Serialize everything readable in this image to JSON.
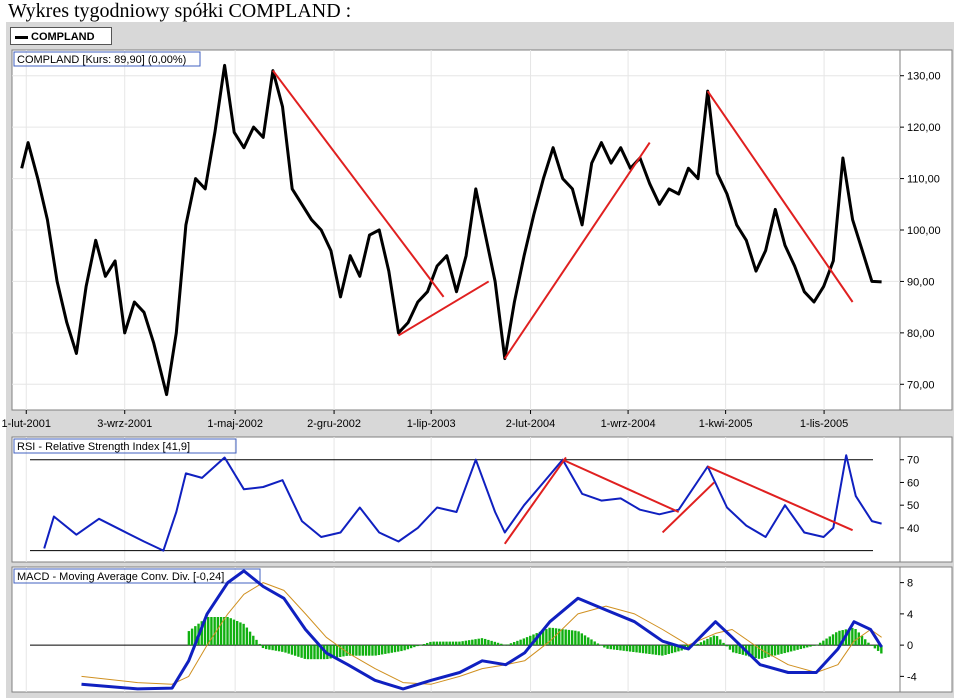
{
  "page": {
    "heading": "Wykres tygodniowy spółki COMPLAND :",
    "legend_label": "COMPLAND"
  },
  "chart_data": [
    {
      "type": "line",
      "title": "COMPLAND [Kurs: 89,90] (0,00%)",
      "x_tick_labels": [
        "1-lut-2001",
        "3-wrz-2001",
        "1-maj-2002",
        "2-gru-2002",
        "1-lip-2003",
        "2-lut-2004",
        "1-wrz-2004",
        "1-kwi-2005",
        "1-lis-2005"
      ],
      "x_ticks": [
        "2001-02-01",
        "2001-09-03",
        "2002-05-01",
        "2002-12-02",
        "2003-07-01",
        "2004-02-02",
        "2004-09-01",
        "2005-04-01",
        "2005-11-01"
      ],
      "x_range": [
        "2001-01-01",
        "2006-04-15"
      ],
      "y_range": [
        65,
        135
      ],
      "y_ticks": [
        70,
        80,
        90,
        100,
        110,
        120,
        130
      ],
      "y_tick_labels": [
        "70,00",
        "80,00",
        "90,00",
        "100,00",
        "110,00",
        "120,00",
        "130,00"
      ],
      "grid": true,
      "series": [
        {
          "name": "COMPLAND",
          "color": "#000000",
          "points": [
            [
              "2001-01-22",
              112
            ],
            [
              "2001-02-05",
              117
            ],
            [
              "2001-02-26",
              110
            ],
            [
              "2001-03-19",
              102
            ],
            [
              "2001-04-09",
              90
            ],
            [
              "2001-04-30",
              82
            ],
            [
              "2001-05-21",
              76
            ],
            [
              "2001-06-11",
              89
            ],
            [
              "2001-07-02",
              98
            ],
            [
              "2001-07-23",
              91
            ],
            [
              "2001-08-13",
              94
            ],
            [
              "2001-09-03",
              80
            ],
            [
              "2001-09-24",
              86
            ],
            [
              "2001-10-15",
              84
            ],
            [
              "2001-11-05",
              78
            ],
            [
              "2001-12-03",
              68
            ],
            [
              "2001-12-24",
              80
            ],
            [
              "2002-01-14",
              101
            ],
            [
              "2002-02-04",
              110
            ],
            [
              "2002-02-25",
              108
            ],
            [
              "2002-03-18",
              119
            ],
            [
              "2002-04-08",
              132
            ],
            [
              "2002-04-29",
              119
            ],
            [
              "2002-05-20",
              116
            ],
            [
              "2002-06-10",
              120
            ],
            [
              "2002-07-01",
              118
            ],
            [
              "2002-07-22",
              131
            ],
            [
              "2002-08-12",
              124
            ],
            [
              "2002-09-02",
              108
            ],
            [
              "2002-09-23",
              105
            ],
            [
              "2002-10-14",
              102
            ],
            [
              "2002-11-04",
              100
            ],
            [
              "2002-11-25",
              96
            ],
            [
              "2002-12-16",
              87
            ],
            [
              "2003-01-06",
              95
            ],
            [
              "2003-01-27",
              91
            ],
            [
              "2003-02-17",
              99
            ],
            [
              "2003-03-10",
              100
            ],
            [
              "2003-03-31",
              92
            ],
            [
              "2003-04-21",
              80
            ],
            [
              "2003-05-12",
              82
            ],
            [
              "2003-06-02",
              86
            ],
            [
              "2003-06-23",
              88
            ],
            [
              "2003-07-14",
              93
            ],
            [
              "2003-08-04",
              95
            ],
            [
              "2003-08-25",
              88
            ],
            [
              "2003-09-15",
              95
            ],
            [
              "2003-10-06",
              108
            ],
            [
              "2003-10-27",
              99
            ],
            [
              "2003-11-17",
              90
            ],
            [
              "2003-12-08",
              75
            ],
            [
              "2003-12-29",
              86
            ],
            [
              "2004-01-19",
              95
            ],
            [
              "2004-02-09",
              103
            ],
            [
              "2004-03-01",
              110
            ],
            [
              "2004-03-22",
              116
            ],
            [
              "2004-04-12",
              110
            ],
            [
              "2004-05-03",
              108
            ],
            [
              "2004-05-24",
              101
            ],
            [
              "2004-06-14",
              113
            ],
            [
              "2004-07-05",
              117
            ],
            [
              "2004-07-26",
              113
            ],
            [
              "2004-08-16",
              116
            ],
            [
              "2004-09-06",
              112
            ],
            [
              "2004-09-27",
              114
            ],
            [
              "2004-10-18",
              109
            ],
            [
              "2004-11-08",
              105
            ],
            [
              "2004-11-29",
              108
            ],
            [
              "2004-12-20",
              107
            ],
            [
              "2005-01-10",
              112
            ],
            [
              "2005-01-31",
              110
            ],
            [
              "2005-02-21",
              127
            ],
            [
              "2005-03-14",
              111
            ],
            [
              "2005-04-04",
              107
            ],
            [
              "2005-04-25",
              101
            ],
            [
              "2005-05-16",
              98
            ],
            [
              "2005-06-06",
              92
            ],
            [
              "2005-06-27",
              96
            ],
            [
              "2005-07-18",
              104
            ],
            [
              "2005-08-08",
              97
            ],
            [
              "2005-08-29",
              93
            ],
            [
              "2005-09-19",
              88
            ],
            [
              "2005-10-10",
              86
            ],
            [
              "2005-10-31",
              89
            ],
            [
              "2005-11-21",
              94
            ],
            [
              "2005-12-12",
              114
            ],
            [
              "2006-01-02",
              102
            ],
            [
              "2006-01-23",
              96
            ],
            [
              "2006-02-13",
              90
            ],
            [
              "2006-03-06",
              89.9
            ]
          ]
        }
      ],
      "trendlines": [
        {
          "color": "#e02020",
          "from": [
            "2002-07-22",
            131
          ],
          "to": [
            "2003-07-28",
            87
          ]
        },
        {
          "color": "#e02020",
          "from": [
            "2003-04-21",
            79.5
          ],
          "to": [
            "2003-11-03",
            90
          ]
        },
        {
          "color": "#e02020",
          "from": [
            "2003-12-08",
            75
          ],
          "to": [
            "2004-10-18",
            117
          ]
        },
        {
          "color": "#e02020",
          "from": [
            "2005-02-21",
            127
          ],
          "to": [
            "2006-01-02",
            86
          ]
        }
      ]
    },
    {
      "type": "line",
      "title": "RSI - Relative Strength Index [41,9]",
      "y_range": [
        25,
        80
      ],
      "y_ticks": [
        40,
        50,
        60,
        70
      ],
      "y_tick_labels": [
        "40",
        "50",
        "60",
        "70"
      ],
      "reference_lines": [
        30,
        70
      ],
      "series": [
        {
          "name": "RSI",
          "color": "#1020c0",
          "points": [
            [
              "2001-03-12",
              31
            ],
            [
              "2001-04-02",
              45
            ],
            [
              "2001-05-21",
              37
            ],
            [
              "2001-07-09",
              44
            ],
            [
              "2001-08-27",
              39
            ],
            [
              "2001-10-15",
              34
            ],
            [
              "2001-11-26",
              30
            ],
            [
              "2001-12-24",
              47
            ],
            [
              "2002-01-14",
              64
            ],
            [
              "2002-02-18",
              62
            ],
            [
              "2002-04-08",
              71
            ],
            [
              "2002-05-20",
              57
            ],
            [
              "2002-07-01",
              58
            ],
            [
              "2002-08-12",
              61
            ],
            [
              "2002-09-23",
              43
            ],
            [
              "2002-11-04",
              36
            ],
            [
              "2002-12-16",
              38
            ],
            [
              "2003-01-27",
              49
            ],
            [
              "2003-03-10",
              38
            ],
            [
              "2003-04-21",
              34
            ],
            [
              "2003-06-02",
              40
            ],
            [
              "2003-07-14",
              49
            ],
            [
              "2003-08-25",
              47
            ],
            [
              "2003-10-06",
              70
            ],
            [
              "2003-11-17",
              47
            ],
            [
              "2003-12-08",
              38
            ],
            [
              "2004-01-19",
              50
            ],
            [
              "2004-03-01",
              60
            ],
            [
              "2004-04-12",
              70
            ],
            [
              "2004-05-24",
              55
            ],
            [
              "2004-07-05",
              52
            ],
            [
              "2004-08-16",
              53
            ],
            [
              "2004-09-27",
              48
            ],
            [
              "2004-11-08",
              46
            ],
            [
              "2004-12-20",
              48
            ],
            [
              "2005-02-21",
              67
            ],
            [
              "2005-04-04",
              49
            ],
            [
              "2005-05-16",
              41
            ],
            [
              "2005-06-27",
              36
            ],
            [
              "2005-08-08",
              50
            ],
            [
              "2005-09-19",
              38
            ],
            [
              "2005-10-31",
              36
            ],
            [
              "2005-11-21",
              40
            ],
            [
              "2005-12-19",
              72
            ],
            [
              "2006-01-09",
              54
            ],
            [
              "2006-02-13",
              43
            ],
            [
              "2006-03-06",
              41.9
            ]
          ]
        }
      ],
      "trendlines": [
        {
          "color": "#e02020",
          "from": [
            "2003-12-08",
            33
          ],
          "to": [
            "2004-04-19",
            71
          ]
        },
        {
          "color": "#e02020",
          "from": [
            "2004-04-12",
            70
          ],
          "to": [
            "2004-12-20",
            47
          ]
        },
        {
          "color": "#e02020",
          "from": [
            "2004-11-15",
            38
          ],
          "to": [
            "2005-03-07",
            60
          ]
        },
        {
          "color": "#e02020",
          "from": [
            "2005-02-21",
            67
          ],
          "to": [
            "2006-01-02",
            39
          ]
        }
      ]
    },
    {
      "type": "bar",
      "title": "MACD - Moving Average Conv. Div. [-0,24]",
      "y_range": [
        -6,
        10
      ],
      "y_ticks": [
        -4,
        0,
        4,
        8
      ],
      "y_tick_labels": [
        "-4",
        "0",
        "4",
        "8"
      ],
      "series": [
        {
          "name": "MACD",
          "color": "#1020c0",
          "points": [
            [
              "2001-06-01",
              -5
            ],
            [
              "2001-10-01",
              -5.6
            ],
            [
              "2001-12-15",
              -5.5
            ],
            [
              "2002-01-20",
              -2
            ],
            [
              "2002-03-01",
              4
            ],
            [
              "2002-04-15",
              8
            ],
            [
              "2002-05-20",
              9.5
            ],
            [
              "2002-07-01",
              7.5
            ],
            [
              "2002-08-15",
              6
            ],
            [
              "2002-10-01",
              2
            ],
            [
              "2002-11-15",
              -1
            ],
            [
              "2003-01-01",
              -2.5
            ],
            [
              "2003-03-01",
              -4.5
            ],
            [
              "2003-05-01",
              -5.6
            ],
            [
              "2003-07-01",
              -4.5
            ],
            [
              "2003-09-01",
              -3.5
            ],
            [
              "2003-10-20",
              -2
            ],
            [
              "2003-12-10",
              -2.5
            ],
            [
              "2004-01-20",
              -1
            ],
            [
              "2004-03-15",
              3
            ],
            [
              "2004-05-15",
              6
            ],
            [
              "2004-07-15",
              4.5
            ],
            [
              "2004-09-15",
              3
            ],
            [
              "2004-11-15",
              0.5
            ],
            [
              "2005-01-10",
              -0.5
            ],
            [
              "2005-03-10",
              3
            ],
            [
              "2005-04-15",
              1
            ],
            [
              "2005-06-15",
              -2.5
            ],
            [
              "2005-08-15",
              -3.5
            ],
            [
              "2005-10-15",
              -3.5
            ],
            [
              "2005-12-01",
              -0.5
            ],
            [
              "2006-01-05",
              3
            ],
            [
              "2006-02-10",
              2
            ],
            [
              "2006-03-06",
              -0.24
            ]
          ]
        },
        {
          "name": "Signal",
          "color": "#d09020",
          "points": [
            [
              "2001-06-01",
              -4
            ],
            [
              "2001-10-01",
              -4.8
            ],
            [
              "2001-12-15",
              -5
            ],
            [
              "2002-01-20",
              -4
            ],
            [
              "2002-03-01",
              0
            ],
            [
              "2002-04-15",
              4
            ],
            [
              "2002-05-20",
              6.5
            ],
            [
              "2002-07-01",
              8
            ],
            [
              "2002-08-15",
              7
            ],
            [
              "2002-10-01",
              4
            ],
            [
              "2002-11-15",
              1
            ],
            [
              "2003-01-01",
              -1
            ],
            [
              "2003-03-01",
              -3
            ],
            [
              "2003-05-01",
              -4.8
            ],
            [
              "2003-07-01",
              -5
            ],
            [
              "2003-09-01",
              -4
            ],
            [
              "2003-10-20",
              -3
            ],
            [
              "2003-12-10",
              -2.5
            ],
            [
              "2004-01-20",
              -2
            ],
            [
              "2004-03-15",
              0.5
            ],
            [
              "2004-05-15",
              4
            ],
            [
              "2004-07-15",
              5
            ],
            [
              "2004-09-15",
              4
            ],
            [
              "2004-11-15",
              2
            ],
            [
              "2005-01-10",
              0
            ],
            [
              "2005-03-10",
              1.5
            ],
            [
              "2005-04-15",
              2
            ],
            [
              "2005-06-15",
              -0.5
            ],
            [
              "2005-08-15",
              -2.5
            ],
            [
              "2005-10-15",
              -3.5
            ],
            [
              "2005-12-01",
              -2.5
            ],
            [
              "2006-01-05",
              0.5
            ],
            [
              "2006-02-10",
              2
            ],
            [
              "2006-03-06",
              1
            ]
          ]
        }
      ],
      "histogram_color": "#10b010"
    }
  ]
}
